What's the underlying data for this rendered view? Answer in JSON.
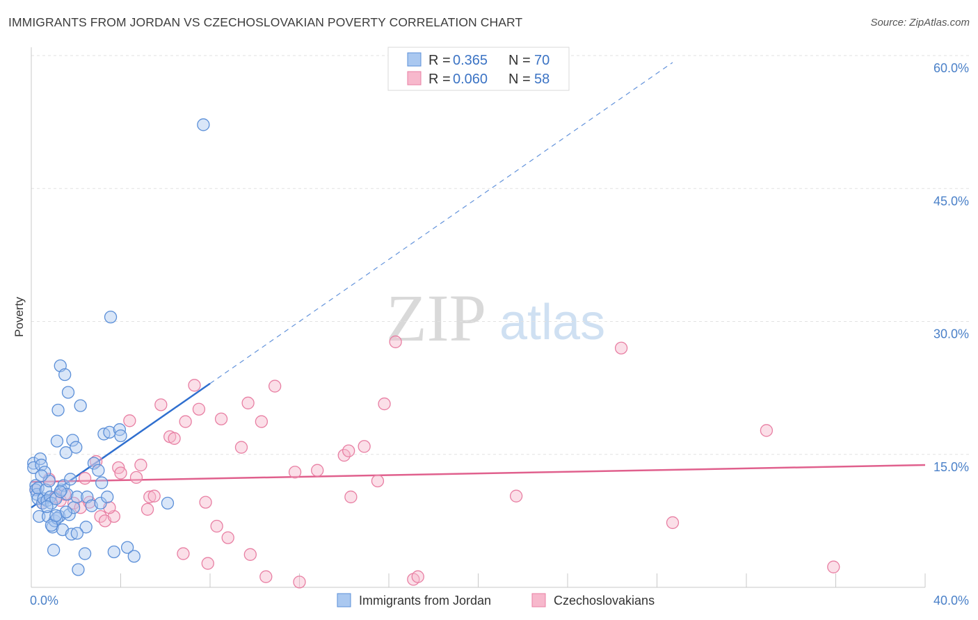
{
  "title": "IMMIGRANTS FROM JORDAN VS CZECHOSLOVAKIAN POVERTY CORRELATION CHART",
  "source": "Source: ZipAtlas.com",
  "watermark": {
    "zip": "ZIP",
    "atlas": "atlas"
  },
  "legend": {
    "r_label": "R =",
    "n_label": "N =",
    "rows": [
      {
        "r": "0.365",
        "n": "70"
      },
      {
        "r": "0.060",
        "n": "58"
      }
    ]
  },
  "colors": {
    "blue_fill": "#aac8f0",
    "blue_stroke": "#5b8fd8",
    "blue_line": "#2f6fcf",
    "pink_fill": "#f7b8cc",
    "pink_stroke": "#e87fa3",
    "pink_line": "#e0608d",
    "grid": "#e2e2e2",
    "tick_text": "#4a80c8"
  },
  "chart_data": {
    "type": "scatter",
    "title": "IMMIGRANTS FROM JORDAN VS CZECHOSLOVAKIAN POVERTY CORRELATION CHART",
    "xlabel": "",
    "ylabel": "Poverty",
    "xlim": [
      0,
      40
    ],
    "ylim": [
      0,
      60
    ],
    "x_tick_labels": [
      {
        "v": 0,
        "label": "0.0%"
      },
      {
        "v": 40,
        "label": "40.0%"
      }
    ],
    "y_tick_labels": [
      {
        "v": 15,
        "label": "15.0%"
      },
      {
        "v": 30,
        "label": "30.0%"
      },
      {
        "v": 45,
        "label": "45.0%"
      },
      {
        "v": 60,
        "label": "60.0%"
      }
    ],
    "series": [
      {
        "name": "Immigrants from Jordan",
        "r": 0.365,
        "n": 70,
        "trend": {
          "x0": 0,
          "y0": 9.0,
          "x1": 8.0,
          "y1": 23.0,
          "dash_to_x": 28.7
        },
        "points": [
          [
            0.1,
            14.0
          ],
          [
            0.1,
            13.5
          ],
          [
            0.2,
            11.5
          ],
          [
            0.2,
            11.0
          ],
          [
            0.25,
            10.5
          ],
          [
            0.3,
            10.0
          ],
          [
            0.3,
            11.2
          ],
          [
            0.35,
            8.0
          ],
          [
            0.4,
            14.5
          ],
          [
            0.45,
            13.8
          ],
          [
            0.5,
            9.5
          ],
          [
            0.55,
            10.0
          ],
          [
            0.6,
            13.0
          ],
          [
            0.65,
            11.0
          ],
          [
            0.7,
            9.8
          ],
          [
            0.75,
            8.0
          ],
          [
            0.8,
            12.0
          ],
          [
            0.85,
            10.2
          ],
          [
            0.9,
            9.5
          ],
          [
            0.95,
            6.8
          ],
          [
            1.0,
            4.2
          ],
          [
            1.05,
            7.5
          ],
          [
            1.1,
            10.0
          ],
          [
            1.15,
            16.5
          ],
          [
            1.2,
            20.0
          ],
          [
            1.25,
            8.0
          ],
          [
            1.3,
            25.0
          ],
          [
            1.35,
            11.0
          ],
          [
            1.4,
            6.5
          ],
          [
            1.45,
            11.5
          ],
          [
            1.5,
            24.0
          ],
          [
            1.55,
            15.2
          ],
          [
            1.6,
            10.5
          ],
          [
            1.65,
            22.0
          ],
          [
            1.7,
            8.2
          ],
          [
            1.8,
            6.0
          ],
          [
            1.85,
            16.6
          ],
          [
            1.9,
            9.0
          ],
          [
            2.0,
            15.8
          ],
          [
            2.05,
            10.2
          ],
          [
            2.1,
            2.0
          ],
          [
            2.2,
            20.5
          ],
          [
            2.4,
            3.8
          ],
          [
            2.45,
            6.8
          ],
          [
            2.5,
            10.2
          ],
          [
            2.7,
            9.2
          ],
          [
            2.8,
            14.0
          ],
          [
            3.0,
            13.2
          ],
          [
            3.1,
            9.5
          ],
          [
            3.15,
            11.8
          ],
          [
            3.25,
            17.3
          ],
          [
            3.4,
            10.2
          ],
          [
            3.5,
            17.5
          ],
          [
            3.55,
            30.5
          ],
          [
            3.7,
            4.0
          ],
          [
            3.95,
            17.8
          ],
          [
            4.0,
            17.1
          ],
          [
            4.3,
            4.5
          ],
          [
            4.6,
            3.5
          ],
          [
            6.1,
            9.5
          ],
          [
            7.7,
            52.2
          ],
          [
            1.15,
            7.8
          ],
          [
            0.9,
            7.0
          ],
          [
            2.05,
            6.1
          ],
          [
            1.75,
            12.2
          ],
          [
            0.45,
            12.6
          ],
          [
            1.3,
            10.8
          ],
          [
            0.7,
            9.1
          ],
          [
            1.55,
            8.5
          ],
          [
            1.1,
            8.1
          ]
        ]
      },
      {
        "name": "Czechoslovakians",
        "r": 0.06,
        "n": 58,
        "trend": {
          "x0": 0,
          "y0": 11.9,
          "x1": 40.0,
          "y1": 13.8
        },
        "points": [
          [
            0.2,
            11.0
          ],
          [
            0.5,
            9.5
          ],
          [
            0.8,
            12.2
          ],
          [
            1.3,
            9.8
          ],
          [
            1.5,
            10.5
          ],
          [
            1.9,
            9.5
          ],
          [
            2.2,
            9.0
          ],
          [
            2.4,
            12.3
          ],
          [
            2.6,
            9.6
          ],
          [
            2.9,
            14.2
          ],
          [
            3.1,
            8.0
          ],
          [
            3.3,
            7.5
          ],
          [
            3.7,
            8.0
          ],
          [
            3.9,
            13.5
          ],
          [
            4.0,
            12.9
          ],
          [
            4.4,
            18.8
          ],
          [
            4.7,
            12.4
          ],
          [
            4.9,
            13.8
          ],
          [
            5.2,
            8.8
          ],
          [
            5.3,
            10.2
          ],
          [
            5.5,
            10.3
          ],
          [
            5.8,
            20.6
          ],
          [
            6.2,
            17.0
          ],
          [
            6.4,
            16.8
          ],
          [
            6.8,
            3.8
          ],
          [
            6.9,
            18.7
          ],
          [
            7.3,
            22.8
          ],
          [
            7.5,
            20.1
          ],
          [
            7.8,
            9.6
          ],
          [
            7.9,
            2.7
          ],
          [
            8.3,
            6.9
          ],
          [
            8.5,
            19.0
          ],
          [
            8.8,
            5.6
          ],
          [
            9.4,
            15.8
          ],
          [
            9.7,
            20.8
          ],
          [
            9.8,
            3.7
          ],
          [
            10.3,
            18.7
          ],
          [
            10.5,
            1.2
          ],
          [
            10.9,
            22.7
          ],
          [
            11.8,
            13.0
          ],
          [
            12.0,
            0.6
          ],
          [
            12.8,
            13.2
          ],
          [
            14.0,
            14.9
          ],
          [
            14.2,
            15.4
          ],
          [
            14.3,
            10.2
          ],
          [
            14.9,
            15.9
          ],
          [
            15.5,
            12.0
          ],
          [
            15.8,
            20.7
          ],
          [
            16.3,
            27.7
          ],
          [
            17.1,
            0.9
          ],
          [
            17.3,
            1.2
          ],
          [
            21.7,
            10.3
          ],
          [
            26.4,
            27.0
          ],
          [
            28.7,
            7.3
          ],
          [
            32.9,
            17.7
          ],
          [
            35.9,
            2.3
          ],
          [
            3.5,
            9.0
          ],
          [
            1.1,
            10.2
          ]
        ]
      }
    ]
  }
}
